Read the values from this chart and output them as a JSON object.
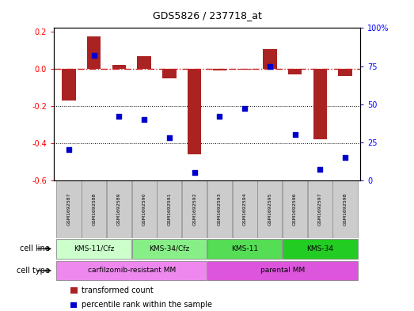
{
  "title": "GDS5826 / 237718_at",
  "samples": [
    "GSM1692587",
    "GSM1692588",
    "GSM1692589",
    "GSM1692590",
    "GSM1692591",
    "GSM1692592",
    "GSM1692593",
    "GSM1692594",
    "GSM1692595",
    "GSM1692596",
    "GSM1692597",
    "GSM1692598"
  ],
  "transformed_count": [
    -0.17,
    0.175,
    0.02,
    0.07,
    -0.05,
    -0.46,
    -0.01,
    -0.005,
    0.105,
    -0.03,
    -0.38,
    -0.04
  ],
  "percentile_rank": [
    20,
    82,
    42,
    40,
    28,
    5,
    42,
    47,
    75,
    30,
    7,
    15
  ],
  "ylim_left": [
    -0.6,
    0.22
  ],
  "ylim_right": [
    0,
    100
  ],
  "yticks_left": [
    -0.6,
    -0.4,
    -0.2,
    0.0,
    0.2
  ],
  "yticks_right": [
    0,
    25,
    50,
    75,
    100
  ],
  "ytick_labels_right": [
    "0",
    "25",
    "50",
    "75",
    "100%"
  ],
  "bar_color": "#aa2222",
  "dot_color": "#0000cc",
  "hline_color": "#cc2222",
  "cell_line_groups": [
    {
      "label": "KMS-11/Cfz",
      "start": 0,
      "end": 2,
      "color": "#ccffcc"
    },
    {
      "label": "KMS-34/Cfz",
      "start": 3,
      "end": 5,
      "color": "#88ee88"
    },
    {
      "label": "KMS-11",
      "start": 6,
      "end": 8,
      "color": "#55dd55"
    },
    {
      "label": "KMS-34",
      "start": 9,
      "end": 11,
      "color": "#22cc22"
    }
  ],
  "cell_type_groups": [
    {
      "label": "carfilzomib-resistant MM",
      "start": 0,
      "end": 5,
      "color": "#ee88ee"
    },
    {
      "label": "parental MM",
      "start": 6,
      "end": 11,
      "color": "#dd55dd"
    }
  ],
  "cell_line_label": "cell line",
  "cell_type_label": "cell type",
  "legend_bar_label": "transformed count",
  "legend_dot_label": "percentile rank within the sample",
  "background_color": "#ffffff"
}
